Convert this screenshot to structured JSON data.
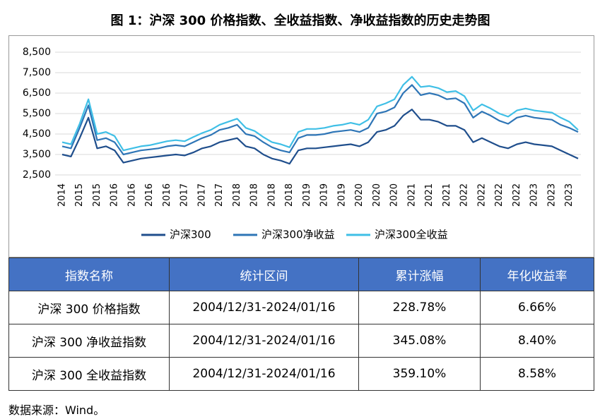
{
  "chart_data": {
    "type": "line",
    "title": "图 1：沪深 300 价格指数、全收益指数、净收益指数的历史走势图",
    "categories": [
      "2014",
      null,
      "2015",
      null,
      "2015",
      null,
      "2016",
      null,
      "2016",
      null,
      "2016",
      null,
      "2016",
      null,
      "2017",
      null,
      "2017",
      null,
      "2017",
      null,
      "2018",
      null,
      "2018",
      null,
      "2018",
      null,
      "2018",
      null,
      "2019",
      null,
      "2019",
      null,
      "2019",
      null,
      "2020",
      null,
      "2020",
      null,
      "2020",
      null,
      "2021",
      null,
      "2021",
      null,
      "2021",
      null,
      "2022",
      null,
      "2022",
      null,
      "2022",
      null,
      "2022",
      null,
      "2023",
      null,
      "2023",
      null,
      "2023",
      null
    ],
    "series": [
      {
        "name": "沪深300",
        "color": "#1f4e8c",
        "values": [
          3500,
          3400,
          4300,
          5300,
          3800,
          3900,
          3700,
          3100,
          3200,
          3300,
          3350,
          3400,
          3450,
          3500,
          3450,
          3600,
          3800,
          3900,
          4100,
          4200,
          4300,
          3900,
          3800,
          3500,
          3300,
          3200,
          3050,
          3700,
          3800,
          3800,
          3850,
          3900,
          3950,
          4000,
          3900,
          4100,
          4600,
          4700,
          4900,
          5400,
          5700,
          5200,
          5200,
          5100,
          4900,
          4900,
          4700,
          4100,
          4300,
          4100,
          3900,
          3800,
          4000,
          4100,
          4000,
          3950,
          3900,
          3700,
          3500,
          3300
        ]
      },
      {
        "name": "沪深300净收益",
        "color": "#2e75b6",
        "values": [
          3900,
          3800,
          4800,
          5900,
          4200,
          4300,
          4100,
          3500,
          3600,
          3700,
          3750,
          3800,
          3900,
          3950,
          3900,
          4100,
          4300,
          4450,
          4700,
          4800,
          4950,
          4500,
          4400,
          4100,
          3850,
          3700,
          3600,
          4300,
          4450,
          4450,
          4500,
          4600,
          4650,
          4700,
          4600,
          4800,
          5500,
          5600,
          5800,
          6500,
          6900,
          6400,
          6500,
          6400,
          6200,
          6250,
          6000,
          5300,
          5600,
          5400,
          5150,
          5000,
          5300,
          5400,
          5300,
          5250,
          5200,
          4950,
          4800,
          4600
        ]
      },
      {
        "name": "沪深300全收益",
        "color": "#3fbfe6",
        "values": [
          4100,
          4000,
          5000,
          6200,
          4500,
          4600,
          4400,
          3700,
          3800,
          3900,
          3950,
          4050,
          4150,
          4200,
          4150,
          4350,
          4550,
          4700,
          4950,
          5100,
          5250,
          4800,
          4650,
          4350,
          4100,
          4000,
          3850,
          4600,
          4750,
          4750,
          4800,
          4900,
          4950,
          5050,
          4950,
          5200,
          5850,
          6000,
          6200,
          6900,
          7300,
          6800,
          6850,
          6750,
          6550,
          6600,
          6350,
          5650,
          5950,
          5750,
          5500,
          5350,
          5650,
          5750,
          5650,
          5600,
          5550,
          5300,
          5100,
          4700
        ]
      }
    ],
    "ylim": [
      2500,
      8500
    ],
    "yticks": [
      {
        "value": 2500,
        "label": "2,500"
      },
      {
        "value": 3500,
        "label": "3,500"
      },
      {
        "value": 4500,
        "label": "4,500"
      },
      {
        "value": 5500,
        "label": "5,500"
      },
      {
        "value": 6500,
        "label": "6,500"
      },
      {
        "value": 7500,
        "label": "7,500"
      },
      {
        "value": 8500,
        "label": "8,500"
      }
    ],
    "grid": true
  },
  "table": {
    "header": [
      "指数名称",
      "统计区间",
      "累计涨幅",
      "年化收益率"
    ],
    "rows": [
      [
        "沪深 300 价格指数",
        "2004/12/31-2024/01/16",
        "228.78%",
        "6.66%"
      ],
      [
        "沪深 300 净收益指数",
        "2004/12/31-2024/01/16",
        "345.08%",
        "8.40%"
      ],
      [
        "沪深 300 全收益指数",
        "2004/12/31-2024/01/16",
        "359.10%",
        "8.58%"
      ]
    ]
  },
  "footer": {
    "source": "数据来源：Wind。"
  }
}
